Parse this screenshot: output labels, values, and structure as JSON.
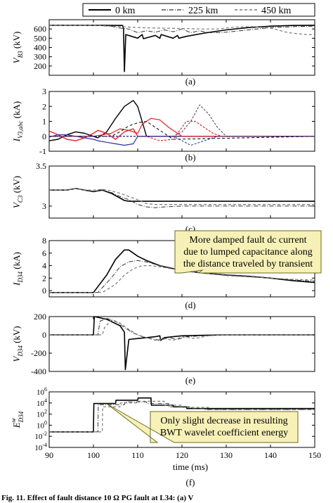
{
  "figure": {
    "caption": "Fig. 11. Effect of fault distance 10 Ω PG fault at L34: (a) V",
    "panel_labels": [
      "(a)",
      "(b)",
      "(c)",
      "(d)",
      "(e)",
      "(f)"
    ],
    "xlabel": "time (ms)",
    "legend": [
      "0 km",
      "225 km",
      "450 km"
    ],
    "annotations": [
      {
        "panel": "d",
        "lines": [
          "More damped fault dc current",
          "due to lumped capacitance along",
          "the distance traveled by transient"
        ]
      },
      {
        "panel": "f",
        "lines": [
          "Only slight decrease in resulting",
          "BWT wavelet coefficient energy"
        ]
      }
    ]
  },
  "colors": {
    "annotation_fill": "#f7f1b8",
    "annotation_stroke": "#6b6b1e",
    "series_gray": "#7a7a7a",
    "red": "#e0252a",
    "blue": "#2a2f9c",
    "navy": "#3a3a6a"
  },
  "chart_data": [
    {
      "panel": "a",
      "type": "line",
      "ylabel": "V_B3 (kV)",
      "xlim": [
        90,
        150
      ],
      "ylim": [
        100,
        700
      ],
      "yticks": [
        200,
        300,
        400,
        500,
        600
      ],
      "series": [
        {
          "name": "0 km",
          "x": [
            90,
            100,
            106.6,
            106.8,
            107.0,
            107.3,
            110,
            111,
            111.3,
            114,
            115,
            115.3,
            118,
            119,
            119.3,
            121,
            125,
            130,
            135,
            140,
            145,
            150
          ],
          "y": [
            640,
            640,
            638,
            600,
            140,
            540,
            500,
            540,
            495,
            530,
            500,
            540,
            500,
            530,
            500,
            520,
            555,
            590,
            615,
            630,
            638,
            640
          ]
        },
        {
          "name": "225 km",
          "x": [
            90,
            100,
            104,
            106,
            108,
            110,
            112,
            114,
            116,
            118,
            120,
            122,
            124,
            126,
            128,
            130,
            135,
            140,
            145,
            150
          ],
          "y": [
            640,
            640,
            630,
            610,
            600,
            560,
            580,
            565,
            590,
            570,
            600,
            560,
            580,
            560,
            560,
            565,
            590,
            615,
            625,
            630
          ]
        },
        {
          "name": "450 km",
          "x": [
            90,
            100,
            104,
            108,
            112,
            116,
            120,
            124,
            128,
            132,
            136,
            140,
            144,
            148,
            150
          ],
          "y": [
            640,
            640,
            630,
            620,
            612,
            608,
            605,
            600,
            600,
            620,
            625,
            610,
            560,
            540,
            540
          ]
        }
      ]
    },
    {
      "panel": "b",
      "type": "line",
      "ylabel": "I_V3,abc (kA)",
      "xlim": [
        90,
        150
      ],
      "ylim": [
        -1,
        3
      ],
      "yticks": [
        -1,
        0,
        1,
        2,
        3
      ],
      "series": [
        {
          "x": [
            90,
            92,
            94,
            96,
            98,
            100,
            101,
            103,
            105,
            107,
            109,
            110,
            112,
            150
          ],
          "y": [
            -0.3,
            -0.2,
            0.1,
            0.3,
            0.2,
            0,
            -0.1,
            0.3,
            1.2,
            2.0,
            2.4,
            2.0,
            0,
            0
          ]
        },
        {
          "x": [
            90,
            92,
            94,
            96,
            98,
            100,
            101,
            103,
            105,
            107,
            109,
            110,
            150
          ],
          "y": [
            0.35,
            0.1,
            -0.2,
            -0.3,
            -0.1,
            0.2,
            0.4,
            0.2,
            -0.2,
            0.3,
            0.5,
            0,
            0
          ]
        },
        {
          "x": [
            90,
            92,
            94,
            96,
            98,
            100,
            101,
            103,
            105,
            107,
            109,
            110,
            150
          ],
          "y": [
            -0.05,
            0.1,
            0.1,
            0,
            -0.1,
            -0.2,
            -0.3,
            -0.4,
            -0.5,
            -0.6,
            -0.5,
            0,
            0
          ]
        },
        {
          "x": [
            90,
            100,
            104,
            106,
            108,
            110,
            111,
            113,
            115,
            117,
            119,
            120,
            150
          ],
          "y": [
            0,
            0,
            0.2,
            0.5,
            0.4,
            0.2,
            0.8,
            1.2,
            1.1,
            0.6,
            0.2,
            0,
            0
          ]
        },
        {
          "x": [
            90,
            104,
            106,
            108,
            110,
            112,
            114,
            116,
            117,
            118,
            150
          ],
          "y": [
            0,
            0,
            0.3,
            0.7,
            0.9,
            1.0,
            0.6,
            0.2,
            0,
            -0.2,
            0
          ]
        },
        {
          "x": [
            90,
            112,
            115,
            118,
            120,
            121,
            123,
            125,
            127,
            129,
            130,
            150
          ],
          "y": [
            0,
            0,
            -0.3,
            -0.2,
            0.6,
            1.0,
            1.0,
            0.6,
            0.2,
            0,
            0,
            0
          ]
        },
        {
          "x": [
            90,
            118,
            120,
            122,
            124,
            126,
            128,
            130,
            150
          ],
          "y": [
            0,
            0,
            0.3,
            1.0,
            2.1,
            1.5,
            0.6,
            0,
            0
          ]
        },
        {
          "x": [
            90,
            118,
            120,
            122,
            124,
            126,
            128,
            150
          ],
          "y": [
            0,
            0,
            -0.3,
            -0.6,
            -0.4,
            -0.2,
            0,
            0
          ]
        }
      ]
    },
    {
      "panel": "c",
      "type": "line",
      "ylabel": "V_C3 (kV)",
      "xlim": [
        90,
        150
      ],
      "ylim": [
        2.85,
        3.5
      ],
      "yticks": [
        3,
        3.5
      ],
      "series": [
        {
          "name": "0 km",
          "x": [
            90,
            94,
            96,
            98,
            100,
            102,
            104,
            106,
            107,
            108,
            109,
            110,
            150
          ],
          "y": [
            3.2,
            3.2,
            3.22,
            3.2,
            3.18,
            3.2,
            3.16,
            3.1,
            3.07,
            3.06,
            3.06,
            3.06,
            3.06
          ]
        },
        {
          "name": "225 km",
          "x": [
            90,
            94,
            96,
            98,
            100,
            102,
            104,
            106,
            108,
            110,
            112,
            114,
            116,
            120,
            125,
            130,
            150
          ],
          "y": [
            3.2,
            3.2,
            3.22,
            3.2,
            3.18,
            3.2,
            3.17,
            3.12,
            3.08,
            3.02,
            2.99,
            2.98,
            2.99,
            3.0,
            3.0,
            3.0,
            3.0
          ]
        },
        {
          "name": "450 km",
          "x": [
            90,
            94,
            96,
            98,
            100,
            102,
            104,
            106,
            108,
            110,
            112,
            114,
            116,
            150
          ],
          "y": [
            3.2,
            3.2,
            3.22,
            3.2,
            3.2,
            3.21,
            3.19,
            3.16,
            3.12,
            3.08,
            3.03,
            3.02,
            3.02,
            3.02
          ]
        }
      ]
    },
    {
      "panel": "d",
      "type": "line",
      "ylabel": "I_D34 (kA)",
      "xlim": [
        90,
        150
      ],
      "ylim": [
        -1,
        8
      ],
      "yticks": [
        0,
        2,
        4,
        6,
        8
      ],
      "series": [
        {
          "name": "0 km",
          "x": [
            90,
            100,
            103,
            105,
            107,
            108,
            110,
            112,
            115,
            120,
            125,
            130,
            135,
            140,
            145,
            150
          ],
          "y": [
            -0.3,
            -0.3,
            2.5,
            5.0,
            6.5,
            6.5,
            5.5,
            4.8,
            4.0,
            3.2,
            2.8,
            2.5,
            2.3,
            2.0,
            1.6,
            1.3
          ]
        },
        {
          "name": "225 km",
          "x": [
            90,
            101,
            104,
            106,
            108,
            110,
            112,
            115,
            120,
            125,
            130,
            135,
            140,
            145,
            150
          ],
          "y": [
            -0.3,
            -0.3,
            2.0,
            3.8,
            4.6,
            4.8,
            4.6,
            4.0,
            3.3,
            2.8,
            2.5,
            2.3,
            2.0,
            1.7,
            1.5
          ]
        },
        {
          "name": "450 km",
          "x": [
            90,
            102,
            105,
            107,
            109,
            111,
            113,
            116,
            120,
            125,
            130,
            135,
            140,
            145,
            150
          ],
          "y": [
            -0.3,
            -0.3,
            1.0,
            2.5,
            3.5,
            4.0,
            4.0,
            3.7,
            3.2,
            2.8,
            2.4,
            2.2,
            2.0,
            1.8,
            1.7
          ]
        }
      ]
    },
    {
      "panel": "e",
      "type": "line",
      "ylabel": "V_D34 (kV)",
      "xlim": [
        90,
        150
      ],
      "ylim": [
        -400,
        200
      ],
      "yticks": [
        -400,
        -200,
        0,
        200
      ],
      "series": [
        {
          "name": "0 km",
          "x": [
            90,
            100,
            100.2,
            103,
            106,
            107,
            107.2,
            108,
            110,
            112,
            114,
            115,
            115.2,
            116,
            118,
            120,
            125,
            130,
            150
          ],
          "y": [
            0,
            0,
            200,
            170,
            100,
            30,
            -380,
            -50,
            -40,
            -30,
            -20,
            -10,
            -60,
            -30,
            -20,
            -10,
            -5,
            0,
            0
          ]
        },
        {
          "name": "225 km",
          "x": [
            90,
            101,
            101.5,
            103,
            105,
            107,
            109,
            111,
            113,
            115,
            117,
            119,
            121,
            125,
            130,
            150
          ],
          "y": [
            0,
            0,
            150,
            180,
            150,
            80,
            20,
            -20,
            -40,
            -60,
            -30,
            -50,
            -20,
            -10,
            0,
            0
          ]
        },
        {
          "name": "450 km",
          "x": [
            90,
            102,
            102.5,
            104,
            106,
            108,
            110,
            112,
            114,
            116,
            118,
            120,
            123,
            126,
            130,
            150
          ],
          "y": [
            0,
            0,
            80,
            160,
            130,
            60,
            0,
            -30,
            -60,
            -40,
            -60,
            -20,
            -40,
            -10,
            0,
            0
          ]
        }
      ]
    },
    {
      "panel": "f",
      "type": "line",
      "ylabel": "E^w_D34",
      "xlim": [
        90,
        150
      ],
      "ylim": [
        -4,
        6
      ],
      "yscale": "log",
      "yticks_exp": [
        -4,
        -2,
        0,
        2,
        4,
        6
      ],
      "series": [
        {
          "name": "0 km",
          "x": [
            90,
            100,
            100.1,
            105,
            105.1,
            110,
            110.1,
            113,
            113.1,
            118,
            118.1,
            121,
            121.1,
            150
          ],
          "y": [
            -1.2,
            -1.2,
            3.9,
            3.9,
            4.5,
            4.5,
            4.9,
            4.9,
            3.6,
            3.6,
            3.3,
            3.3,
            3.0,
            3.0
          ]
        },
        {
          "name": "225 km",
          "x": [
            90,
            101,
            101.1,
            107,
            107.1,
            112,
            112.1,
            117,
            117.1,
            122,
            122.1,
            125,
            125.1,
            150
          ],
          "y": [
            -1.2,
            -1.2,
            3.7,
            3.7,
            4.2,
            4.2,
            3.9,
            3.9,
            3.3,
            3.3,
            3.0,
            3.0,
            2.8,
            2.8
          ]
        },
        {
          "name": "450 km",
          "x": [
            90,
            102,
            102.1,
            106,
            106.1,
            110,
            110.1,
            116,
            116.1,
            120,
            120.1,
            126,
            126.1,
            150
          ],
          "y": [
            -1.2,
            -1.2,
            3.3,
            3.3,
            4.0,
            4.0,
            4.3,
            4.3,
            3.6,
            3.6,
            3.2,
            3.2,
            2.8,
            2.8
          ]
        }
      ]
    }
  ]
}
